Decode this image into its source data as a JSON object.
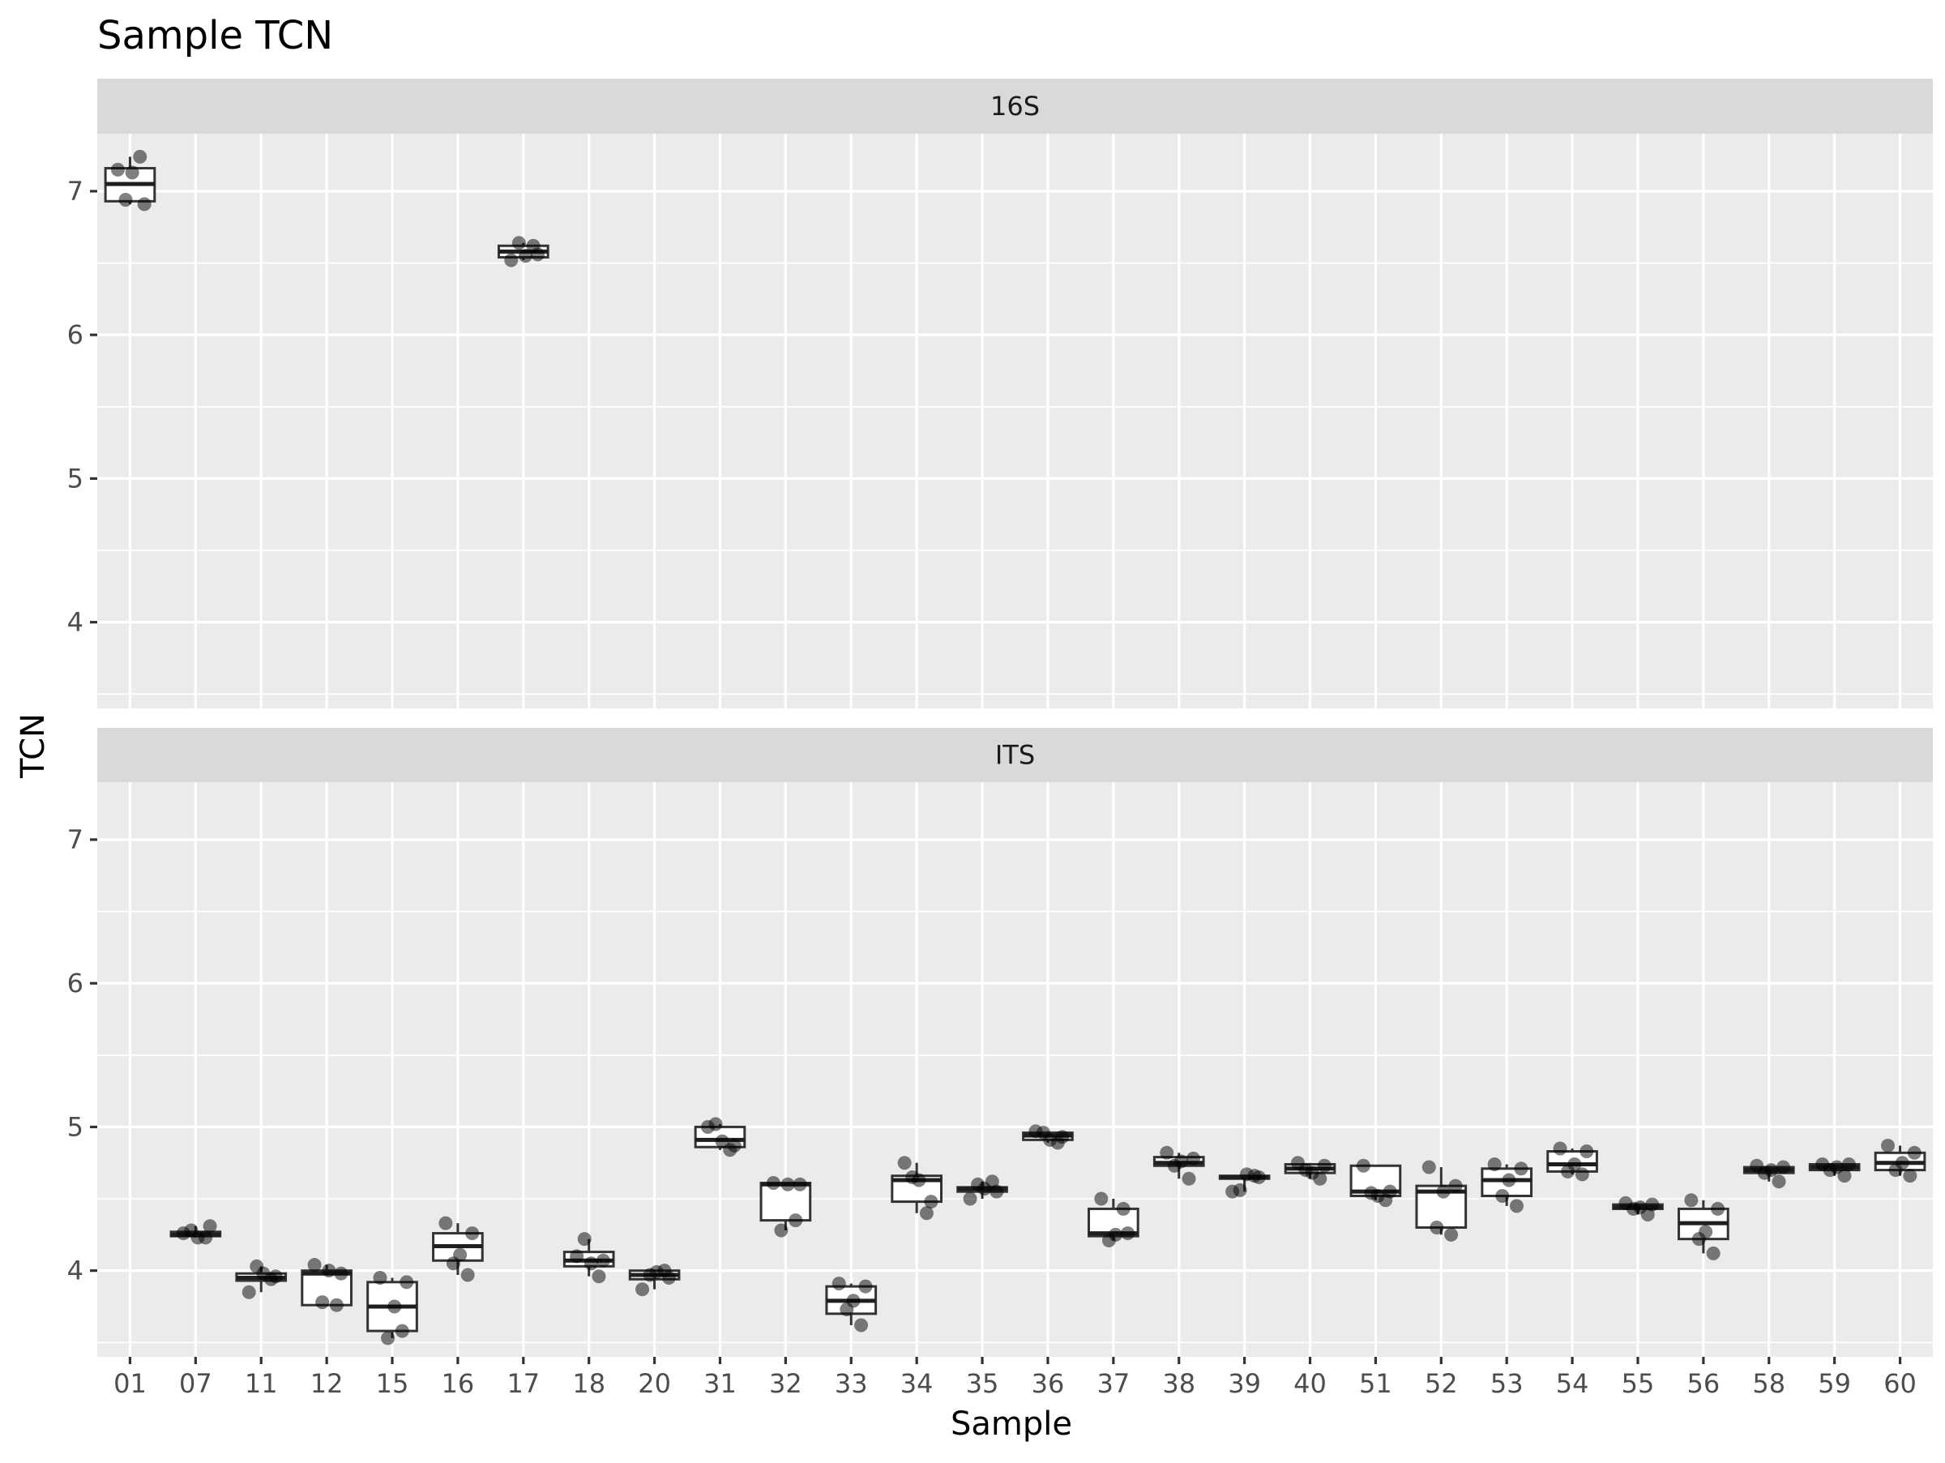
{
  "chart_data": {
    "type": "box",
    "title": "Sample TCN",
    "xlabel": "Sample",
    "ylabel": "TCN",
    "categories": [
      "01",
      "07",
      "11",
      "12",
      "15",
      "16",
      "17",
      "18",
      "20",
      "31",
      "32",
      "33",
      "34",
      "35",
      "36",
      "37",
      "38",
      "39",
      "40",
      "51",
      "52",
      "53",
      "54",
      "55",
      "56",
      "58",
      "59",
      "60"
    ],
    "ylim": [
      3.4,
      7.4
    ],
    "yticks": [
      "4",
      "5",
      "6",
      "7"
    ],
    "grid": true,
    "panels": [
      {
        "name": "16S",
        "boxes": [
          {
            "category": "01",
            "q1": 6.93,
            "median": 7.05,
            "q3": 7.16,
            "points": [
              7.15,
              7.24,
              6.94,
              6.91,
              7.13
            ]
          },
          {
            "category": "17",
            "q1": 6.54,
            "median": 6.58,
            "q3": 6.62,
            "points": [
              6.52,
              6.62,
              6.64,
              6.56,
              6.55
            ]
          }
        ]
      },
      {
        "name": "ITS",
        "boxes": [
          {
            "category": "07",
            "q1": 4.24,
            "median": 4.25,
            "q3": 4.27,
            "points": [
              4.26,
              4.23,
              4.28,
              4.31,
              4.23
            ]
          },
          {
            "category": "11",
            "q1": 3.93,
            "median": 3.95,
            "q3": 3.98,
            "points": [
              3.85,
              3.94,
              4.03,
              3.96,
              3.98
            ]
          },
          {
            "category": "12",
            "q1": 3.76,
            "median": 3.98,
            "q3": 4.0,
            "points": [
              4.04,
              3.76,
              3.78,
              3.98,
              4.0
            ]
          },
          {
            "category": "15",
            "q1": 3.58,
            "median": 3.75,
            "q3": 3.92,
            "points": [
              3.95,
              3.58,
              3.53,
              3.92,
              3.75
            ]
          },
          {
            "category": "16",
            "q1": 4.07,
            "median": 4.17,
            "q3": 4.26,
            "points": [
              4.33,
              3.97,
              4.05,
              4.26,
              4.11
            ]
          },
          {
            "category": "18",
            "q1": 4.03,
            "median": 4.07,
            "q3": 4.13,
            "points": [
              4.1,
              3.96,
              4.22,
              4.07,
              4.05
            ]
          },
          {
            "category": "20",
            "q1": 3.94,
            "median": 3.97,
            "q3": 4.0,
            "points": [
              3.87,
              4.0,
              3.97,
              3.95,
              3.99
            ]
          },
          {
            "category": "31",
            "q1": 4.86,
            "median": 4.91,
            "q3": 5.0,
            "points": [
              5.0,
              4.84,
              5.02,
              4.87,
              4.9
            ]
          },
          {
            "category": "32",
            "q1": 4.35,
            "median": 4.6,
            "q3": 4.61,
            "points": [
              4.61,
              4.35,
              4.28,
              4.6,
              4.6
            ]
          },
          {
            "category": "33",
            "q1": 3.7,
            "median": 3.79,
            "q3": 3.89,
            "points": [
              3.91,
              3.62,
              3.73,
              3.89,
              3.79
            ]
          },
          {
            "category": "34",
            "q1": 4.48,
            "median": 4.63,
            "q3": 4.66,
            "points": [
              4.75,
              4.4,
              4.65,
              4.48,
              4.63
            ]
          },
          {
            "category": "35",
            "q1": 4.55,
            "median": 4.57,
            "q3": 4.58,
            "points": [
              4.5,
              4.62,
              4.6,
              4.55,
              4.57
            ]
          },
          {
            "category": "36",
            "q1": 4.91,
            "median": 4.94,
            "q3": 4.96,
            "points": [
              4.97,
              4.89,
              4.96,
              4.93,
              4.91
            ]
          },
          {
            "category": "37",
            "q1": 4.24,
            "median": 4.26,
            "q3": 4.43,
            "points": [
              4.5,
              4.43,
              4.21,
              4.26,
              4.25
            ]
          },
          {
            "category": "38",
            "q1": 4.73,
            "median": 4.75,
            "q3": 4.79,
            "points": [
              4.82,
              4.64,
              4.73,
              4.78,
              4.76
            ]
          },
          {
            "category": "39",
            "q1": 4.64,
            "median": 4.65,
            "q3": 4.66,
            "points": [
              4.55,
              4.66,
              4.56,
              4.65,
              4.67
            ]
          },
          {
            "category": "40",
            "q1": 4.68,
            "median": 4.71,
            "q3": 4.74,
            "points": [
              4.75,
              4.64,
              4.7,
              4.73,
              4.68
            ]
          },
          {
            "category": "51",
            "q1": 4.52,
            "median": 4.55,
            "q3": 4.73,
            "points": [
              4.73,
              4.49,
              4.54,
              4.55,
              4.52
            ]
          },
          {
            "category": "52",
            "q1": 4.3,
            "median": 4.55,
            "q3": 4.59,
            "points": [
              4.72,
              4.25,
              4.3,
              4.59,
              4.55
            ]
          },
          {
            "category": "53",
            "q1": 4.52,
            "median": 4.63,
            "q3": 4.71,
            "points": [
              4.74,
              4.45,
              4.52,
              4.71,
              4.63
            ]
          },
          {
            "category": "54",
            "q1": 4.69,
            "median": 4.74,
            "q3": 4.83,
            "points": [
              4.85,
              4.67,
              4.69,
              4.83,
              4.74
            ]
          },
          {
            "category": "55",
            "q1": 4.43,
            "median": 4.44,
            "q3": 4.46,
            "points": [
              4.47,
              4.39,
              4.43,
              4.46,
              4.44
            ]
          },
          {
            "category": "56",
            "q1": 4.22,
            "median": 4.33,
            "q3": 4.43,
            "points": [
              4.49,
              4.12,
              4.22,
              4.43,
              4.27
            ]
          },
          {
            "category": "58",
            "q1": 4.68,
            "median": 4.7,
            "q3": 4.72,
            "points": [
              4.73,
              4.62,
              4.68,
              4.72,
              4.7
            ]
          },
          {
            "category": "59",
            "q1": 4.7,
            "median": 4.72,
            "q3": 4.74,
            "points": [
              4.74,
              4.66,
              4.7,
              4.74,
              4.72
            ]
          },
          {
            "category": "60",
            "q1": 4.7,
            "median": 4.75,
            "q3": 4.82,
            "points": [
              4.87,
              4.66,
              4.7,
              4.82,
              4.75
            ]
          }
        ]
      }
    ]
  }
}
